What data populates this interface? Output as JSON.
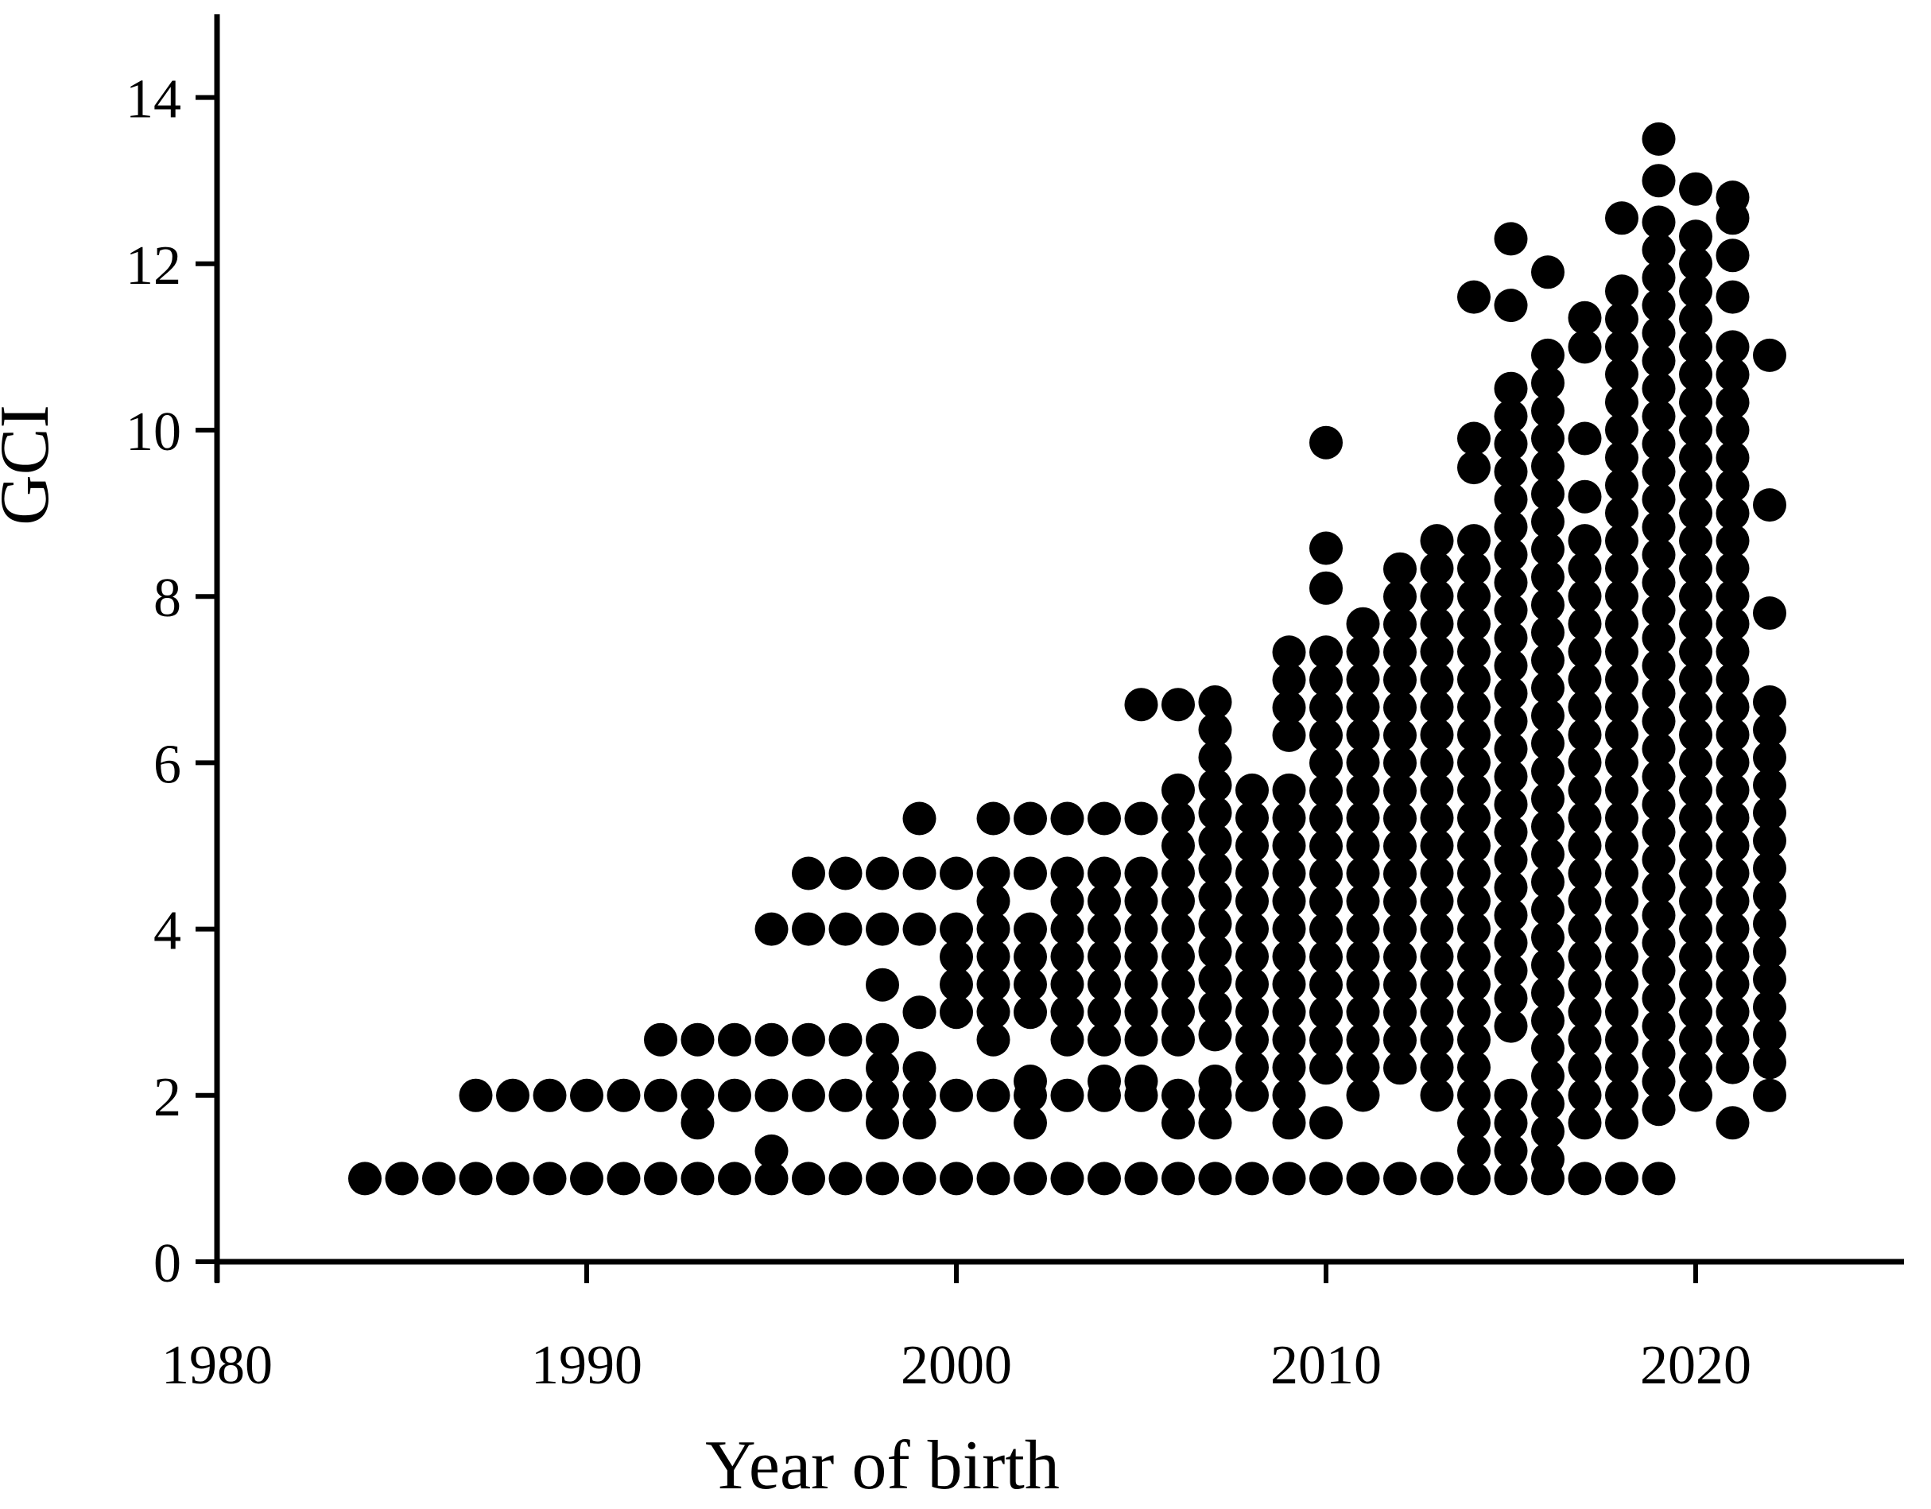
{
  "figure": {
    "background": "#ffffff",
    "marker_color": "#000000"
  },
  "axes": {
    "y": {
      "label": "GCI",
      "tick_labels": [
        "0",
        "2",
        "4",
        "6",
        "8",
        "10",
        "12",
        "14"
      ],
      "ticks": [
        0,
        2,
        4,
        6,
        8,
        10,
        12,
        14
      ],
      "range": [
        0,
        15
      ]
    },
    "x": {
      "label": "Year of birth",
      "tick_labels": [
        "1980",
        "1990",
        "2000",
        "2010",
        "2020"
      ],
      "ticks": [
        1980,
        1990,
        2000,
        2010,
        2020
      ],
      "range": [
        1980,
        2026
      ]
    }
  },
  "chart_data": {
    "type": "scatter",
    "title": "",
    "xlabel": "Year of birth",
    "ylabel": "GCI",
    "xlim": [
      1980,
      2026
    ],
    "ylim": [
      0,
      15
    ],
    "grid": false,
    "legend": "none",
    "marker": {
      "shape": "circle",
      "color": "#000000",
      "radius_px": 21
    },
    "gci_step_in_columns": 0.3333,
    "series": [
      {
        "year": 1984,
        "points": [
          1
        ]
      },
      {
        "year": 1985,
        "points": [
          1
        ]
      },
      {
        "year": 1986,
        "points": [
          1
        ]
      },
      {
        "year": 1987,
        "points": [
          1,
          2
        ]
      },
      {
        "year": 1988,
        "points": [
          1,
          2
        ]
      },
      {
        "year": 1989,
        "points": [
          1,
          2
        ]
      },
      {
        "year": 1990,
        "points": [
          1,
          2
        ]
      },
      {
        "year": 1991,
        "points": [
          1,
          2
        ]
      },
      {
        "year": 1992,
        "points": [
          1,
          2,
          2.67
        ]
      },
      {
        "year": 1993,
        "points": [
          1,
          1.67,
          2,
          2.67
        ]
      },
      {
        "year": 1994,
        "points": [
          1,
          2,
          2.67
        ]
      },
      {
        "year": 1995,
        "points": [
          1,
          1.33,
          2,
          2.67,
          4
        ]
      },
      {
        "year": 1996,
        "points": [
          1,
          2,
          2.67,
          4,
          4.67
        ]
      },
      {
        "year": 1997,
        "points": [
          1,
          2,
          2.67,
          4,
          4.67
        ]
      },
      {
        "year": 1998,
        "points": [
          1,
          1.67,
          2,
          2.33,
          2.67,
          3.33,
          4,
          4.67
        ]
      },
      {
        "year": 1999,
        "points": [
          1,
          1.67,
          2,
          2.33,
          4.67,
          5.33
        ],
        "ranges": [
          [
            4.0,
            3.67
          ],
          [
            3.0,
            2.67
          ]
        ]
      },
      {
        "year": 2000,
        "points": [
          1,
          2,
          4.67
        ],
        "ranges": [
          [
            4.0,
            2.67
          ]
        ]
      },
      {
        "year": 2001,
        "points": [
          1,
          2,
          5.33
        ],
        "ranges": [
          [
            4.67,
            2.67
          ]
        ]
      },
      {
        "year": 2002,
        "points": [
          1,
          1.67,
          2,
          2.17,
          4.67,
          5.33
        ],
        "ranges": [
          [
            4.0,
            2.67
          ]
        ]
      },
      {
        "year": 2003,
        "points": [
          1,
          2,
          5.33
        ],
        "ranges": [
          [
            4.67,
            2.67
          ]
        ]
      },
      {
        "year": 2004,
        "points": [
          1,
          2,
          2.17,
          5.33
        ],
        "ranges": [
          [
            4.67,
            2.67
          ]
        ]
      },
      {
        "year": 2005,
        "points": [
          1,
          2,
          2.17,
          5.33,
          6.7
        ],
        "ranges": [
          [
            4.67,
            2.67
          ]
        ]
      },
      {
        "year": 2006,
        "points": [
          1,
          1.67,
          2,
          6.7
        ],
        "ranges": [
          [
            5.67,
            2.67
          ]
        ]
      },
      {
        "year": 2007,
        "points": [
          1,
          1.67,
          2,
          2.17
        ],
        "ranges": [
          [
            6.73,
            2.67
          ]
        ]
      },
      {
        "year": 2008,
        "points": [
          1
        ],
        "ranges": [
          [
            5.67,
            2.0
          ]
        ]
      },
      {
        "year": 2009,
        "points": [
          1,
          1.67
        ],
        "ranges": [
          [
            7.33,
            6.33
          ],
          [
            5.67,
            2.0
          ]
        ]
      },
      {
        "year": 2010,
        "points": [
          1,
          1.67,
          9.85,
          8.58,
          8.1
        ],
        "ranges": [
          [
            7.33,
            2.0
          ]
        ]
      },
      {
        "year": 2011,
        "points": [
          1
        ],
        "ranges": [
          [
            7.67,
            2.0
          ]
        ]
      },
      {
        "year": 2012,
        "points": [
          1
        ],
        "ranges": [
          [
            8.33,
            2.0
          ]
        ]
      },
      {
        "year": 2013,
        "points": [
          1
        ],
        "ranges": [
          [
            8.67,
            2.0
          ]
        ]
      },
      {
        "year": 2014,
        "points": [
          1,
          11.6,
          9.9,
          9.55
        ],
        "ranges": [
          [
            8.67,
            1.33
          ]
        ]
      },
      {
        "year": 2015,
        "points": [
          1,
          12.3,
          11.5
        ],
        "ranges": [
          [
            10.5,
            2.67
          ],
          [
            2.0,
            1.33
          ]
        ]
      },
      {
        "year": 2016,
        "points": [
          1,
          11.9
        ],
        "ranges": [
          [
            10.9,
            1.0
          ]
        ]
      },
      {
        "year": 2017,
        "points": [
          1,
          11.35,
          11.0,
          9.9,
          9.2
        ],
        "ranges": [
          [
            8.67,
            1.67
          ]
        ]
      },
      {
        "year": 2018,
        "points": [
          1,
          12.55
        ],
        "ranges": [
          [
            11.67,
            1.67
          ]
        ]
      },
      {
        "year": 2019,
        "points": [
          1,
          13.5,
          13.0
        ],
        "ranges": [
          [
            12.5,
            1.67
          ]
        ]
      },
      {
        "year": 2020,
        "points": [
          12.9,
          12.33,
          12.0
        ],
        "ranges": [
          [
            11.67,
            2.0
          ]
        ]
      },
      {
        "year": 2021,
        "points": [
          12.8,
          12.55,
          12.1,
          11.6,
          1.67
        ],
        "ranges": [
          [
            11.0,
            8.83
          ],
          [
            8.67,
            2.33
          ]
        ]
      },
      {
        "year": 2022,
        "points": [
          10.9,
          9.1,
          7.8,
          2.0
        ],
        "ranges": [
          [
            6.73,
            2.33
          ]
        ]
      }
    ]
  }
}
